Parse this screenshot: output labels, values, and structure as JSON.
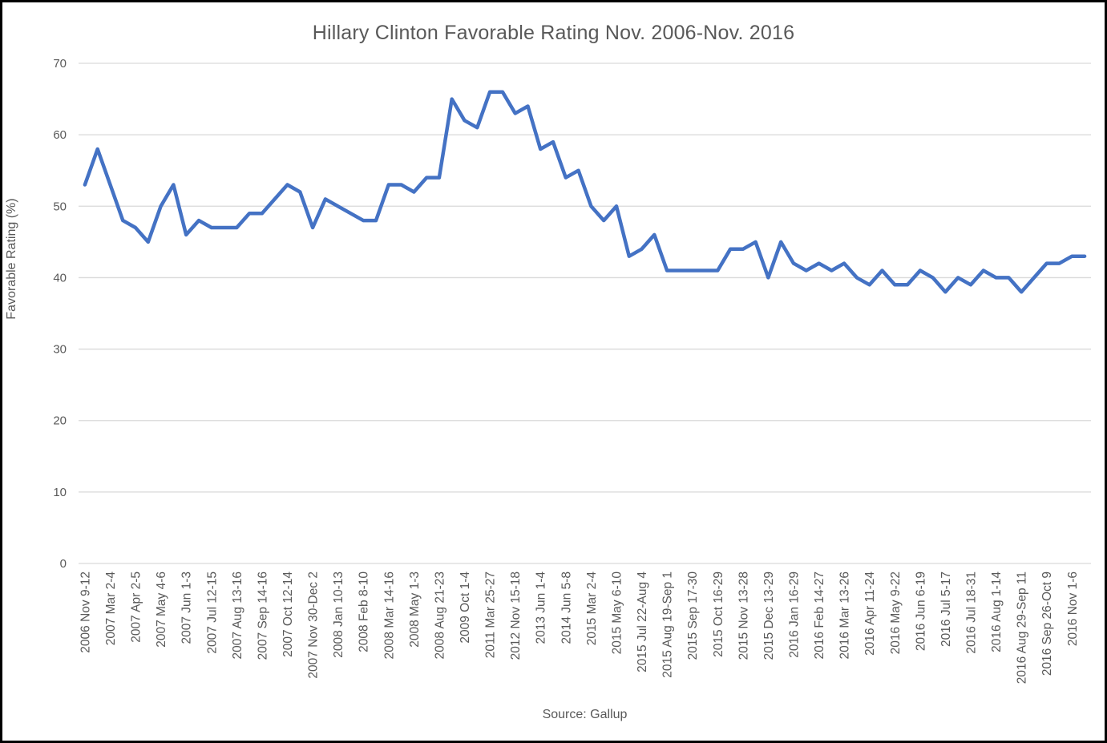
{
  "title": "Hillary Clinton Favorable Rating Nov. 2006-Nov. 2016",
  "source": "Source: Gallup",
  "y_axis": {
    "title": "Favorable Rating (%)"
  },
  "style": {
    "line_color": "#4472C4",
    "grid_color": "#D9D9D9",
    "text_color": "#595959",
    "background": "#FFFFFF",
    "border_color": "#000000"
  },
  "chart_data": {
    "type": "line",
    "title": "Hillary Clinton Favorable Rating Nov. 2006-Nov. 2016",
    "xlabel": "",
    "ylabel": "Favorable Rating (%)",
    "ylim": [
      0,
      70
    ],
    "yticks": [
      0,
      10,
      20,
      30,
      40,
      50,
      60,
      70
    ],
    "grid": "horizontal",
    "legend_position": "none",
    "source_note": "Source: Gallup",
    "x_tick_labels": [
      "2006 Nov 9-12",
      "2007 Mar 2-4",
      "2007 Apr 2-5",
      "2007 May 4-6",
      "2007 Jun 1-3",
      "2007 Jul 12-15",
      "2007 Aug 13-16",
      "2007 Sep 14-16",
      "2007 Oct 12-14",
      "2007 Nov 30-Dec 2",
      "2008 Jan 10-13",
      "2008 Feb 8-10",
      "2008 Mar 14-16",
      "2008 May 1-3",
      "2008 Aug 21-23",
      "2009 Oct 1-4",
      "2011 Mar 25-27",
      "2012 Nov 15-18",
      "2013 Jun 1-4",
      "2014 Jun 5-8",
      "2015 Mar 2-4",
      "2015 May 6-10",
      "2015 Jul 22-Aug 4",
      "2015 Aug 19-Sep 1",
      "2015 Sep 17-30",
      "2015 Oct 16-29",
      "2015 Nov 13-28",
      "2015 Dec 13-29",
      "2016 Jan 16-29",
      "2016 Feb 14-27",
      "2016 Mar 13-26",
      "2016 Apr 11-24",
      "2016 May 9-22",
      "2016 Jun 6-19",
      "2016 Jul 5-17",
      "2016 Jul 18-31",
      "2016 Aug 1-14",
      "2016 Aug 29-Sep 11",
      "2016 Sep 26-Oct 9",
      "2016 Nov 1-6"
    ],
    "tick_label_every": 2,
    "series": [
      {
        "name": "Favorable Rating (%)",
        "color": "#4472C4",
        "values": [
          53,
          58,
          53,
          48,
          47,
          45,
          50,
          53,
          46,
          48,
          47,
          47,
          47,
          49,
          49,
          51,
          53,
          52,
          47,
          51,
          50,
          49,
          48,
          48,
          53,
          53,
          52,
          54,
          54,
          65,
          62,
          61,
          66,
          66,
          63,
          64,
          58,
          59,
          54,
          55,
          50,
          48,
          50,
          43,
          44,
          46,
          41,
          41,
          41,
          41,
          41,
          44,
          44,
          45,
          40,
          45,
          42,
          41,
          42,
          41,
          42,
          40,
          39,
          41,
          39,
          39,
          41,
          40,
          38,
          40,
          39,
          41,
          40,
          40,
          38,
          40,
          42,
          42,
          43,
          43
        ]
      }
    ]
  }
}
